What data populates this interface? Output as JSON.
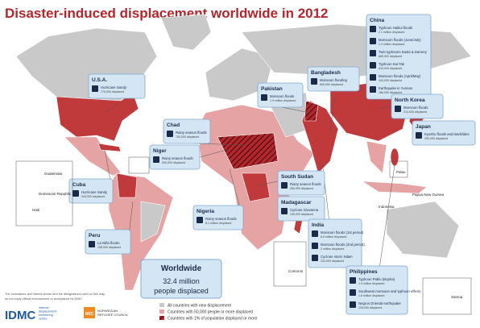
{
  "title": "Disaster-induced displacement worldwide in 2012",
  "callouts": [
    {
      "country": "U.S.A.",
      "events": [
        {
          "name": "Hurricane Sandy",
          "displaced": "776,000 displaced"
        }
      ]
    },
    {
      "country": "China",
      "events": [
        {
          "name": "Typhoon Haikui floods",
          "displaced": "2.1 million displaced"
        },
        {
          "name": "Monsoon floods (June/July)",
          "displaced": "1.4 million displaced"
        },
        {
          "name": "Twin typhoons Saola & Damrey",
          "displaced": "680,000 displaced"
        },
        {
          "name": "Typhoon Kai-Tak",
          "displaced": "610,000 displaced"
        },
        {
          "name": "Monsoon floods (April/May)",
          "displaced": "443,000 displaced"
        },
        {
          "name": "Earthquake in Yunnan",
          "displaced": "186,000 displaced"
        }
      ]
    },
    {
      "country": "Pakistan",
      "events": [
        {
          "name": "Monsoon floods",
          "displaced": "1.9 million displaced"
        }
      ]
    },
    {
      "country": "Bangladesh",
      "events": [
        {
          "name": "Monsoon flooding",
          "displaced": "600,000 displaced"
        }
      ]
    },
    {
      "country": "North Korea",
      "events": [
        {
          "name": "Monsoon floods",
          "displaced": "212,000 displaced"
        }
      ]
    },
    {
      "country": "Japan",
      "events": [
        {
          "name": "Kyushu floods and landslides",
          "displaced": "250,000 displaced"
        }
      ]
    },
    {
      "country": "Chad",
      "events": [
        {
          "name": "Rainy season floods",
          "displaced": "700,000 displaced"
        }
      ]
    },
    {
      "country": "Niger",
      "events": [
        {
          "name": "Rainy season floods",
          "displaced": "530,000 displaced"
        }
      ]
    },
    {
      "country": "South Sudan",
      "events": [
        {
          "name": "Rainy season floods",
          "displaced": "260,000 displaced"
        }
      ]
    },
    {
      "country": "Nigeria",
      "events": [
        {
          "name": "Rainy season floods",
          "displaced": "6.1 million displaced"
        }
      ]
    },
    {
      "country": "Madagascar",
      "events": [
        {
          "name": "Cyclone Giovanna",
          "displaced": "130,000 displaced"
        }
      ]
    },
    {
      "country": "India",
      "events": [
        {
          "name": "Monsoon floods (1st period)",
          "displaced": "6.9 million displaced"
        },
        {
          "name": "Monsoon floods (2nd period)",
          "displaced": "2 million displaced"
        },
        {
          "name": "Cyclone storm Nilam",
          "displaced": "220,000 displaced"
        }
      ]
    },
    {
      "country": "Philippines",
      "events": [
        {
          "name": "Typhoon Pablo (Bopha)",
          "displaced": "1.9 million displaced"
        },
        {
          "name": "Southwest monsoon and typhoon effects",
          "displaced": "1.8 million displaced"
        },
        {
          "name": "Negros Oriental earthquake",
          "displaced": "105,000 displaced"
        }
      ]
    },
    {
      "country": "Cuba",
      "events": [
        {
          "name": "Hurricane Sandy",
          "displaced": "343,000 displaced"
        }
      ]
    },
    {
      "country": "Peru",
      "events": [
        {
          "name": "La Niña floods",
          "displaced": "138,000 displaced"
        }
      ]
    }
  ],
  "worldwide": {
    "label": "Worldwide",
    "value": "32.4 million",
    "caption": "people displaced"
  },
  "map_labels": [
    "Guatemala",
    "Dominican Republic",
    "Haiti",
    "Palau",
    "Papua New Guinea",
    "Indonesia",
    "Comoros",
    "Samoa"
  ],
  "legend": [
    "All countries with new displacement",
    "Countries with 50,000 people or more displaced",
    "Countries with 1% of population displaced or more"
  ],
  "disclaimer": [
    "The boundaries and names shown and the designations used on this map",
    "do not imply official endorsement or acceptance by IDMC"
  ],
  "logos": {
    "idmc": "IDMC",
    "idmc_name": [
      "internal",
      "displacement",
      "monitoring",
      "centre"
    ],
    "nrc": "NRC",
    "nrc_name": [
      "NORWEGIAN",
      "REFUGEE COUNCIL"
    ]
  }
}
